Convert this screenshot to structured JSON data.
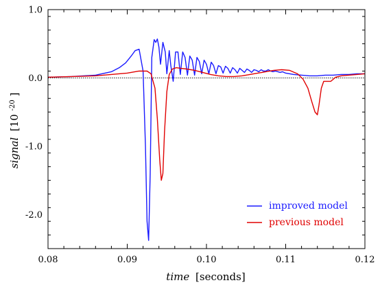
{
  "chart_data": {
    "type": "line",
    "title": "",
    "xlabel_italic": "time",
    "xlabel_unit": "[seconds]",
    "ylabel_italic": "signal",
    "ylabel_unit_base": "[10",
    "ylabel_unit_exp": "-20",
    "ylabel_unit_close": "]",
    "xlim": [
      0.08,
      0.12
    ],
    "ylim": [
      -2.5,
      1.0
    ],
    "x_ticks": [
      0.08,
      0.09,
      0.1,
      0.11,
      0.12
    ],
    "x_tick_labels": [
      "0.08",
      "0.09",
      "0.10",
      "0.11",
      "0.12"
    ],
    "y_ticks": [
      1.0,
      0.0,
      -1.0,
      -2.0
    ],
    "y_tick_labels": [
      "1.0",
      "0.0",
      "-1.0",
      "-2.0"
    ],
    "zero_line": true,
    "grid": false,
    "legend_position": "bottom-right",
    "series": [
      {
        "name": "improved model",
        "color": "#1a1aff",
        "x": [
          0.08,
          0.083,
          0.086,
          0.088,
          0.089,
          0.0898,
          0.0905,
          0.091,
          0.0915,
          0.092,
          0.0923,
          0.0925,
          0.0927,
          0.0929,
          0.0931,
          0.0934,
          0.0936,
          0.0938,
          0.094,
          0.0942,
          0.0945,
          0.0948,
          0.095,
          0.0953,
          0.0955,
          0.0958,
          0.0961,
          0.0964,
          0.0967,
          0.097,
          0.0973,
          0.0976,
          0.0979,
          0.0982,
          0.0985,
          0.0988,
          0.0991,
          0.0994,
          0.0997,
          0.1,
          0.1003,
          0.1006,
          0.1009,
          0.1012,
          0.1015,
          0.1018,
          0.1021,
          0.1024,
          0.1027,
          0.103,
          0.1033,
          0.1036,
          0.1039,
          0.1042,
          0.1045,
          0.1048,
          0.1051,
          0.1054,
          0.1057,
          0.106,
          0.1063,
          0.1066,
          0.1069,
          0.1072,
          0.1075,
          0.1078,
          0.1081,
          0.1084,
          0.1087,
          0.109,
          0.1093,
          0.1096,
          0.11,
          0.1105,
          0.111,
          0.112,
          0.113,
          0.114,
          0.115,
          0.116,
          0.117,
          0.118,
          0.119,
          0.12
        ],
        "y": [
          0.01,
          0.02,
          0.04,
          0.09,
          0.15,
          0.22,
          0.32,
          0.4,
          0.42,
          0.1,
          -1.0,
          -2.1,
          -2.38,
          -1.4,
          0.3,
          0.56,
          0.52,
          0.57,
          0.45,
          0.2,
          0.52,
          0.38,
          0.06,
          0.4,
          0.18,
          -0.05,
          0.38,
          0.38,
          0.05,
          0.38,
          0.3,
          0.04,
          0.32,
          0.26,
          0.04,
          0.3,
          0.24,
          0.06,
          0.26,
          0.2,
          0.06,
          0.23,
          0.18,
          0.06,
          0.18,
          0.16,
          0.07,
          0.17,
          0.14,
          0.07,
          0.15,
          0.12,
          0.07,
          0.14,
          0.11,
          0.08,
          0.13,
          0.11,
          0.08,
          0.12,
          0.11,
          0.09,
          0.12,
          0.1,
          0.1,
          0.12,
          0.1,
          0.09,
          0.1,
          0.09,
          0.08,
          0.09,
          0.07,
          0.06,
          0.05,
          0.04,
          0.03,
          0.03,
          0.04,
          0.04,
          0.05,
          0.05,
          0.06,
          0.06
        ]
      },
      {
        "name": "previous model",
        "color": "#e00000",
        "x": [
          0.08,
          0.083,
          0.086,
          0.088,
          0.09,
          0.0915,
          0.0925,
          0.093,
          0.0935,
          0.0938,
          0.0941,
          0.0943,
          0.0945,
          0.0947,
          0.095,
          0.0953,
          0.0957,
          0.0962,
          0.0968,
          0.0975,
          0.0985,
          0.0995,
          0.1005,
          0.1015,
          0.1025,
          0.1035,
          0.1045,
          0.1055,
          0.1065,
          0.1075,
          0.1085,
          0.1095,
          0.1105,
          0.1115,
          0.1122,
          0.1128,
          0.1133,
          0.1137,
          0.114,
          0.1142,
          0.1145,
          0.1148,
          0.1152,
          0.1157,
          0.1163,
          0.117,
          0.118,
          0.119,
          0.12
        ],
        "y": [
          0.01,
          0.02,
          0.03,
          0.05,
          0.07,
          0.1,
          0.1,
          0.06,
          -0.15,
          -0.6,
          -1.2,
          -1.5,
          -1.4,
          -0.8,
          -0.2,
          0.05,
          0.13,
          0.15,
          0.14,
          0.13,
          0.11,
          0.08,
          0.05,
          0.03,
          0.02,
          0.02,
          0.03,
          0.05,
          0.07,
          0.09,
          0.11,
          0.12,
          0.11,
          0.06,
          -0.02,
          -0.15,
          -0.35,
          -0.5,
          -0.54,
          -0.4,
          -0.15,
          -0.05,
          -0.05,
          -0.05,
          0.01,
          0.03,
          0.04,
          0.05,
          0.06
        ]
      }
    ]
  }
}
